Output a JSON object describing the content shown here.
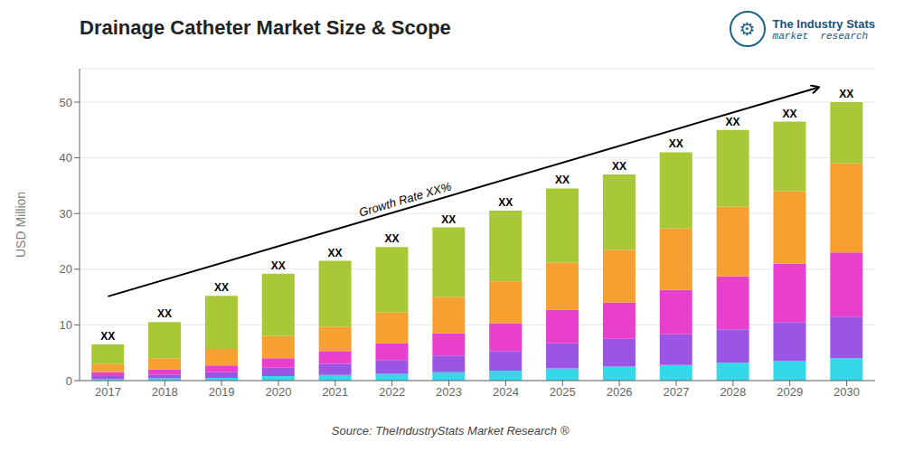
{
  "chart_data": {
    "type": "bar",
    "stacked": true,
    "title": "Drainage Catheter Market Size & Scope",
    "y_label": "USD Million",
    "source": "Source: TheIndustryStats Market Research ®",
    "categories": [
      "2017",
      "2018",
      "2019",
      "2020",
      "2021",
      "2022",
      "2023",
      "2024",
      "2025",
      "2026",
      "2027",
      "2028",
      "2029",
      "2030"
    ],
    "series": [
      {
        "color": "#35D8E8",
        "values": [
          0.3,
          0.4,
          0.5,
          0.8,
          1.0,
          1.2,
          1.5,
          1.8,
          2.2,
          2.5,
          2.8,
          3.2,
          3.5,
          4.0
        ]
      },
      {
        "color": "#9B55E5",
        "values": [
          0.5,
          0.7,
          1.0,
          1.5,
          2.0,
          2.5,
          3.0,
          3.5,
          4.5,
          5.0,
          5.5,
          6.0,
          7.0,
          7.5
        ]
      },
      {
        "color": "#E840CC",
        "values": [
          0.7,
          0.9,
          1.2,
          1.7,
          2.2,
          3.0,
          4.0,
          5.0,
          6.0,
          6.5,
          8.0,
          9.5,
          10.5,
          11.5
        ]
      },
      {
        "color": "#F5A030",
        "values": [
          1.5,
          2.0,
          3.0,
          4.0,
          4.5,
          5.5,
          6.5,
          7.5,
          8.5,
          9.5,
          11.0,
          12.5,
          13.0,
          16.0
        ]
      },
      {
        "color": "#A8C838",
        "values": [
          3.5,
          6.5,
          9.5,
          11.2,
          11.8,
          11.8,
          12.5,
          12.7,
          13.3,
          13.5,
          13.7,
          13.8,
          12.5,
          11.0
        ]
      }
    ],
    "stack_label": "XX",
    "annotations": [
      {
        "text": "Growth Rate XX%"
      },
      {
        "text": "⚙"
      },
      {
        "text": "The Industry Stats"
      },
      {
        "text": "market  research"
      }
    ],
    "ylim": [
      0,
      56
    ],
    "yticks": [
      0,
      10,
      20,
      30,
      40,
      50
    ],
    "grid": true
  }
}
